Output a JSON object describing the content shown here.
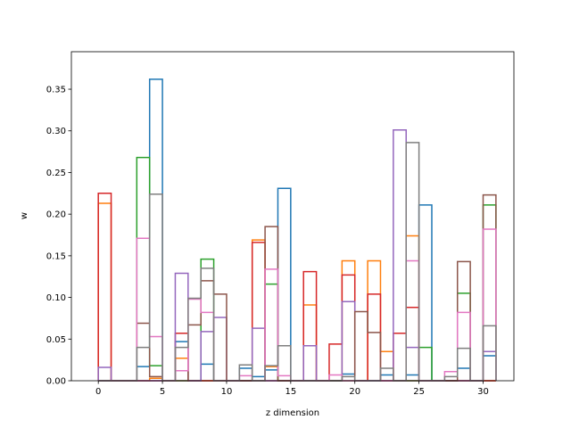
{
  "chart_data": {
    "type": "bar",
    "title": "",
    "xlabel": "z dimension",
    "ylabel": "w",
    "xlim": [
      -2.1,
      32.4
    ],
    "ylim": [
      0,
      0.395
    ],
    "x_ticks": [
      0,
      5,
      10,
      15,
      20,
      25,
      30
    ],
    "y_ticks": [
      0.0,
      0.05,
      0.1,
      0.15,
      0.2,
      0.25,
      0.3,
      0.35
    ],
    "bin_range": [
      0,
      31
    ],
    "histtype": "step",
    "grid": false,
    "legend": "none",
    "series": [
      {
        "color": "#1f77b4",
        "values": [
          0.0,
          0.0,
          0.0,
          0.017,
          0.362,
          0.0,
          0.047,
          0.0,
          0.02,
          0.0,
          0.0,
          0.015,
          0.005,
          0.013,
          0.231,
          0.0,
          0.0,
          0.0,
          0.0,
          0.008,
          0.0,
          0.0,
          0.007,
          0.0,
          0.007,
          0.211,
          0.0,
          0.0,
          0.015,
          0.0,
          0.03
        ]
      },
      {
        "color": "#ff7f0e",
        "values": [
          0.213,
          0.0,
          0.0,
          0.0,
          0.003,
          0.0,
          0.027,
          0.0,
          0.0,
          0.0,
          0.0,
          0.0,
          0.169,
          0.017,
          0.0,
          0.0,
          0.091,
          0.0,
          0.0,
          0.144,
          0.0,
          0.144,
          0.035,
          0.0,
          0.174,
          0.0,
          0.0,
          0.0,
          0.0,
          0.0,
          0.0
        ]
      },
      {
        "color": "#2ca02c",
        "values": [
          0.0,
          0.0,
          0.0,
          0.268,
          0.018,
          0.0,
          0.0,
          0.0,
          0.146,
          0.0,
          0.0,
          0.0,
          0.0,
          0.116,
          0.0,
          0.0,
          0.0,
          0.0,
          0.0,
          0.0,
          0.0,
          0.0,
          0.0,
          0.0,
          0.0,
          0.04,
          0.0,
          0.0,
          0.105,
          0.0,
          0.211
        ]
      },
      {
        "color": "#d62728",
        "values": [
          0.225,
          0.0,
          0.0,
          0.0,
          0.0,
          0.0,
          0.057,
          0.0,
          0.0,
          0.0,
          0.0,
          0.0,
          0.166,
          0.0,
          0.0,
          0.0,
          0.131,
          0.0,
          0.044,
          0.127,
          0.0,
          0.104,
          0.0,
          0.057,
          0.088,
          0.0,
          0.0,
          0.0,
          0.0,
          0.0,
          0.0
        ]
      },
      {
        "color": "#9467bd",
        "values": [
          0.016,
          0.0,
          0.0,
          0.0,
          0.0,
          0.0,
          0.129,
          0.0,
          0.059,
          0.076,
          0.0,
          0.0,
          0.063,
          0.0,
          0.0,
          0.0,
          0.042,
          0.0,
          0.0,
          0.095,
          0.0,
          0.0,
          0.0,
          0.301,
          0.04,
          0.0,
          0.0,
          0.0,
          0.0,
          0.0,
          0.035
        ]
      },
      {
        "color": "#8c564b",
        "values": [
          0.0,
          0.0,
          0.0,
          0.069,
          0.005,
          0.0,
          0.0,
          0.067,
          0.12,
          0.104,
          0.0,
          0.0,
          0.0,
          0.185,
          0.0,
          0.0,
          0.0,
          0.0,
          0.0,
          0.0,
          0.083,
          0.058,
          0.0,
          0.0,
          0.0,
          0.0,
          0.0,
          0.0,
          0.143,
          0.0,
          0.223
        ]
      },
      {
        "color": "#e377c2",
        "values": [
          0.0,
          0.0,
          0.0,
          0.171,
          0.053,
          0.0,
          0.012,
          0.098,
          0.082,
          0.0,
          0.0,
          0.006,
          0.0,
          0.134,
          0.006,
          0.0,
          0.0,
          0.0,
          0.007,
          0.0,
          0.0,
          0.0,
          0.0,
          0.0,
          0.144,
          0.0,
          0.0,
          0.011,
          0.082,
          0.0,
          0.182
        ]
      },
      {
        "color": "#7f7f7f",
        "values": [
          0.0,
          0.0,
          0.0,
          0.04,
          0.224,
          0.0,
          0.04,
          0.099,
          0.135,
          0.0,
          0.0,
          0.019,
          0.0,
          0.018,
          0.042,
          0.0,
          0.0,
          0.0,
          0.0,
          0.005,
          0.0,
          0.0,
          0.015,
          0.0,
          0.286,
          0.0,
          0.0,
          0.005,
          0.039,
          0.0,
          0.066
        ]
      }
    ]
  }
}
